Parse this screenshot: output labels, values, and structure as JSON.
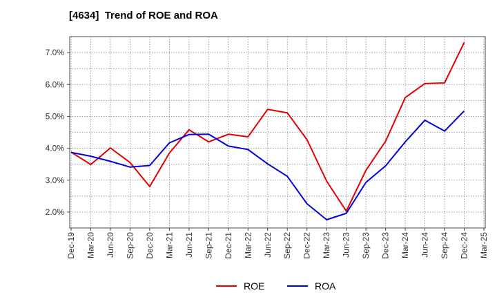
{
  "chart_data": {
    "type": "line",
    "title": "[4634]  Trend of ROE and ROA",
    "xlabel": "",
    "ylabel": "",
    "categories": [
      "Dec-19",
      "Mar-20",
      "Jun-20",
      "Sep-20",
      "Dec-20",
      "Mar-21",
      "Jun-21",
      "Sep-21",
      "Dec-21",
      "Mar-22",
      "Jun-22",
      "Sep-22",
      "Dec-22",
      "Mar-23",
      "Jun-23",
      "Sep-23",
      "Dec-23",
      "Mar-24",
      "Jun-24",
      "Sep-24",
      "Dec-24",
      "Mar-25"
    ],
    "ylim": [
      1.5,
      7.5
    ],
    "yticks": [
      2.0,
      3.0,
      4.0,
      5.0,
      6.0,
      7.0
    ],
    "ytick_labels": [
      "2.0%",
      "3.0%",
      "4.0%",
      "5.0%",
      "6.0%",
      "7.0%"
    ],
    "grid": true,
    "legend_position": "bottom",
    "series": [
      {
        "name": "ROE",
        "color": "#e00000",
        "values": [
          3.88,
          3.49,
          4.01,
          3.55,
          2.8,
          3.85,
          4.58,
          4.2,
          4.44,
          4.36,
          5.22,
          5.11,
          4.27,
          2.97,
          2.03,
          3.31,
          4.22,
          5.59,
          6.03,
          6.05,
          7.32,
          null
        ]
      },
      {
        "name": "ROA",
        "color": "#0000dd",
        "values": [
          3.87,
          3.75,
          3.59,
          3.41,
          3.46,
          4.17,
          4.43,
          4.44,
          4.07,
          3.96,
          3.51,
          3.12,
          2.26,
          1.76,
          1.96,
          2.93,
          3.45,
          4.2,
          4.88,
          4.54,
          5.17,
          null
        ]
      }
    ]
  }
}
